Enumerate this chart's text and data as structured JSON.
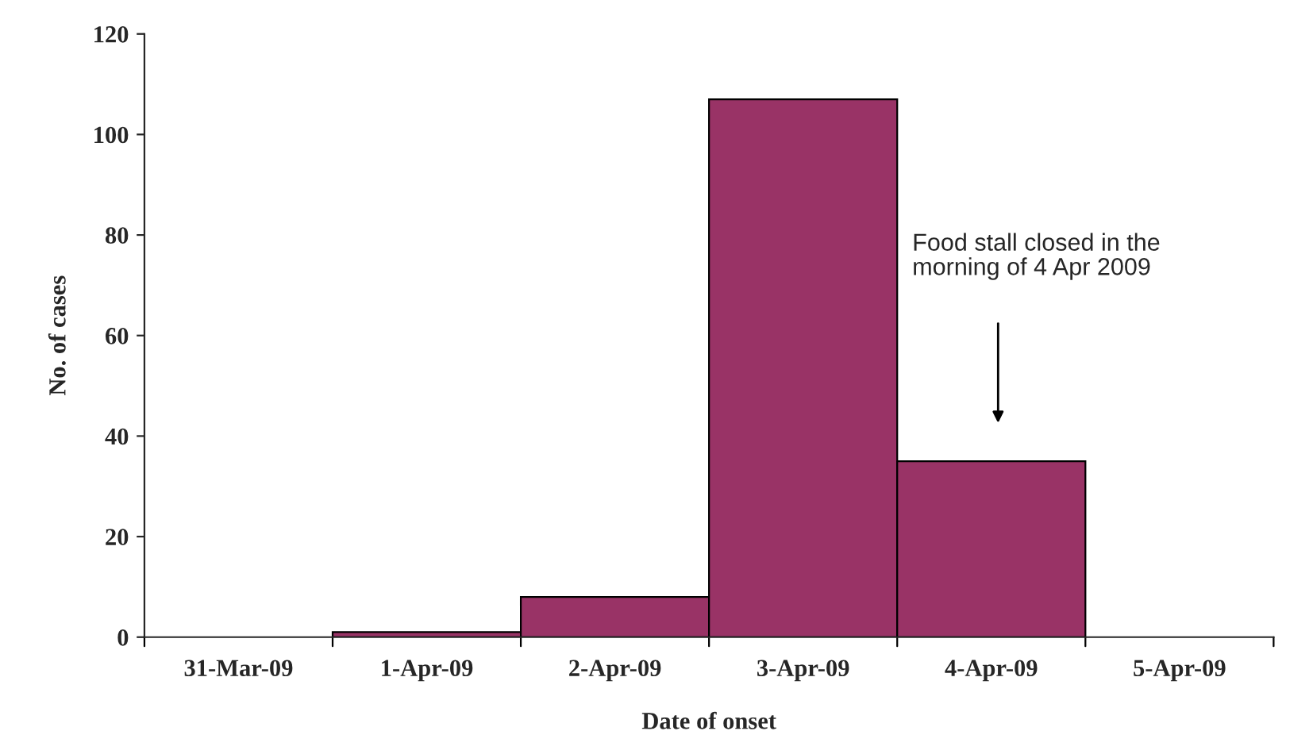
{
  "chart_data": {
    "type": "bar",
    "xlabel": "Date of onset",
    "ylabel": "No. of cases",
    "categories": [
      "31-Mar-09",
      "1-Apr-09",
      "2-Apr-09",
      "3-Apr-09",
      "4-Apr-09",
      "5-Apr-09"
    ],
    "values": [
      0,
      1,
      8,
      107,
      35,
      0
    ],
    "color": "#993366",
    "ylim": [
      0,
      120
    ],
    "yticks": [
      0,
      20,
      40,
      60,
      80,
      100,
      120
    ],
    "grid": false,
    "legend": false,
    "annotations": [
      "Food stall closed in the\nmorning of 4 Apr 2009"
    ]
  }
}
